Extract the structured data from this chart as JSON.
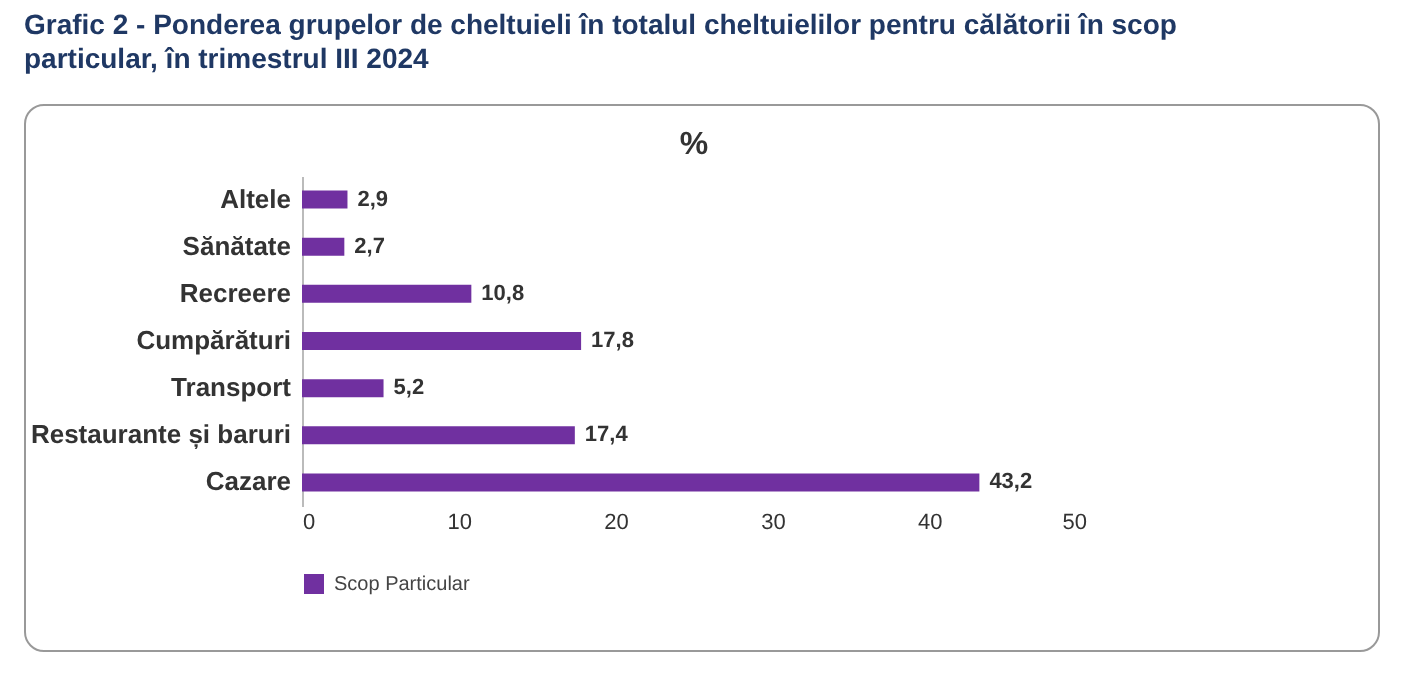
{
  "chart_data": {
    "type": "bar",
    "orientation": "horizontal",
    "title": "Grafic 2 - Ponderea grupelor de cheltuieli în totalul cheltuielilor pentru călătorii în scop particular, în trimestrul III 2024",
    "subtitle": "%",
    "categories": [
      "Altele",
      "Sănătate",
      "Recreere",
      "Cumpărături",
      "Transport",
      "Restaurante și baruri",
      "Cazare"
    ],
    "series": [
      {
        "name": "Scop Particular",
        "color": "#7030a0",
        "values": [
          2.9,
          2.7,
          10.8,
          17.8,
          5.2,
          17.4,
          43.2
        ],
        "value_labels": [
          "2,9",
          "2,7",
          "10,8",
          "17,8",
          "5,2",
          "17,4",
          "43,2"
        ]
      }
    ],
    "xlim": [
      0,
      50
    ],
    "xticks": [
      0,
      10,
      20,
      30,
      40,
      50
    ],
    "grid": false,
    "legend": "bottom"
  }
}
